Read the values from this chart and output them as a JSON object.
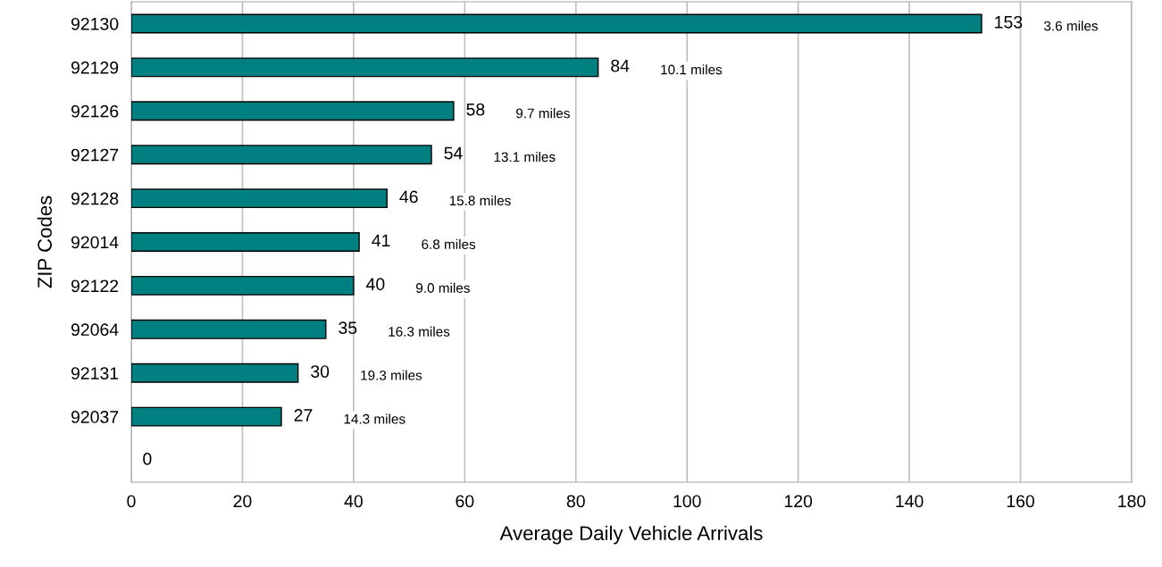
{
  "chart_data": {
    "type": "bar",
    "orientation": "horizontal",
    "xlabel": "Average Daily Vehicle Arrivals",
    "ylabel": "ZIP Codes",
    "categories": [
      "92130",
      "92129",
      "92126",
      "92127",
      "92128",
      "92014",
      "92122",
      "92064",
      "92131",
      "92037",
      null
    ],
    "values": [
      153,
      84,
      58,
      54,
      46,
      41,
      40,
      35,
      30,
      27,
      0
    ],
    "color": "#008080",
    "data_labels": true,
    "xlim": [
      0,
      180
    ],
    "xticks": [
      0,
      20,
      40,
      60,
      80,
      100,
      120,
      140,
      160,
      180
    ],
    "grid": "x",
    "legend": false,
    "annotations": [
      "3.6 miles",
      "10.1 miles",
      "9.7 miles",
      "13.1 miles",
      "15.8 miles",
      "6.8 miles",
      "9.0 miles",
      "16.3 miles",
      "19.3 miles",
      "14.3 miles"
    ]
  }
}
